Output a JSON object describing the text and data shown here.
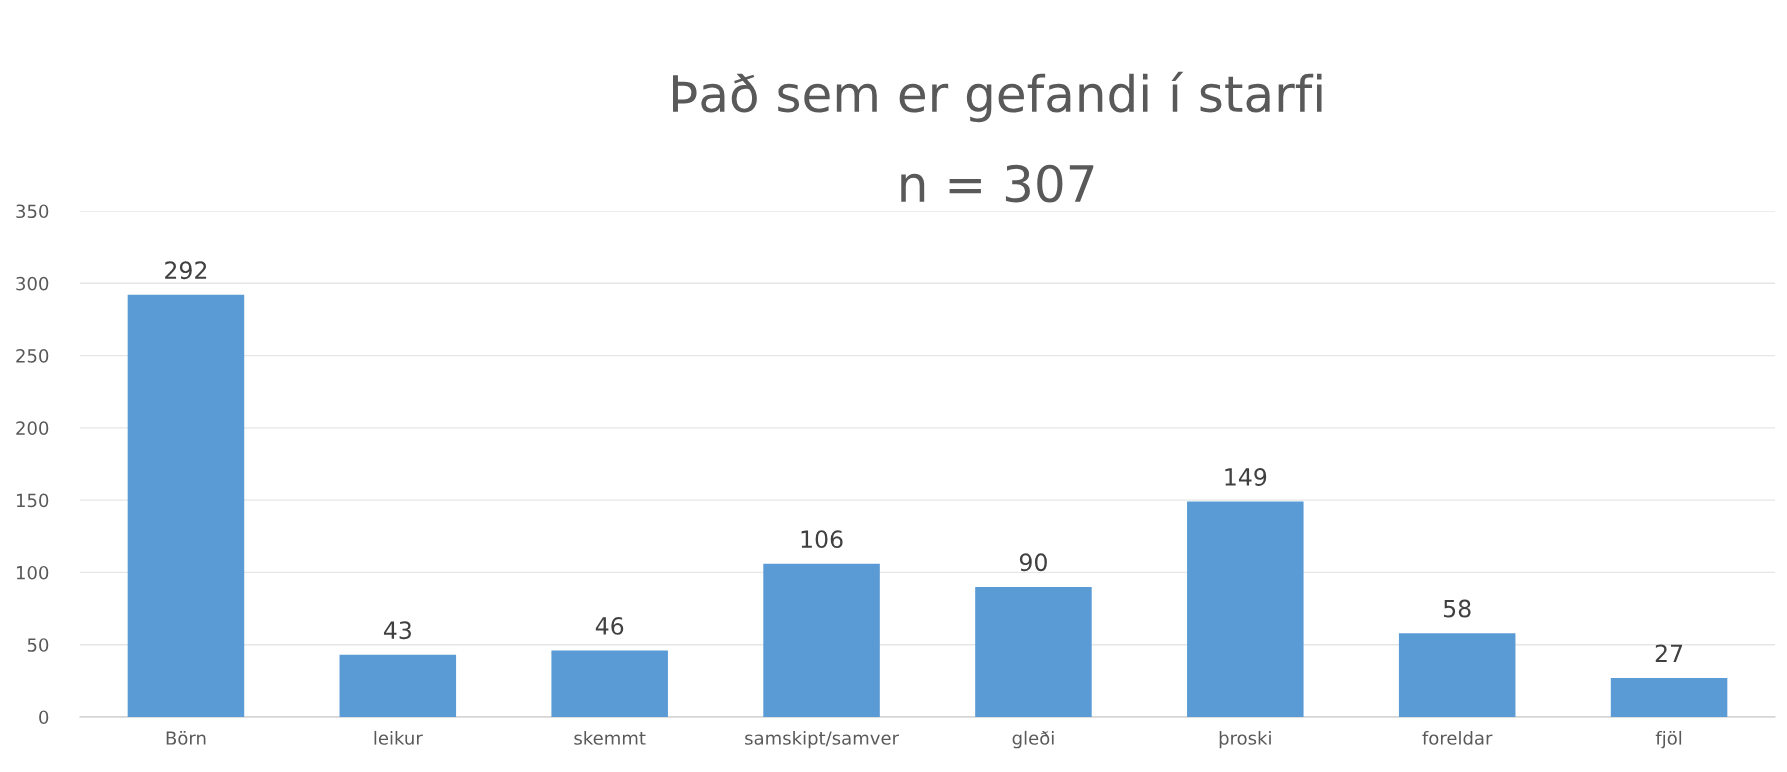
{
  "chart_data": {
    "type": "bar",
    "title": "Það sem er gefandi í starfi",
    "subtitle": "n = 307",
    "categories": [
      "Börn",
      "leikur",
      "skemmt",
      "samskipt/samver",
      "gleði",
      "þroski",
      "foreldar",
      "fjöl"
    ],
    "values": [
      292,
      43,
      46,
      106,
      90,
      149,
      58,
      27
    ],
    "color": "#5b9bd5",
    "ylim": [
      0,
      350
    ],
    "yticks": [
      0,
      50,
      100,
      150,
      200,
      250,
      300,
      350
    ],
    "grid": "y",
    "data_labels": true
  }
}
